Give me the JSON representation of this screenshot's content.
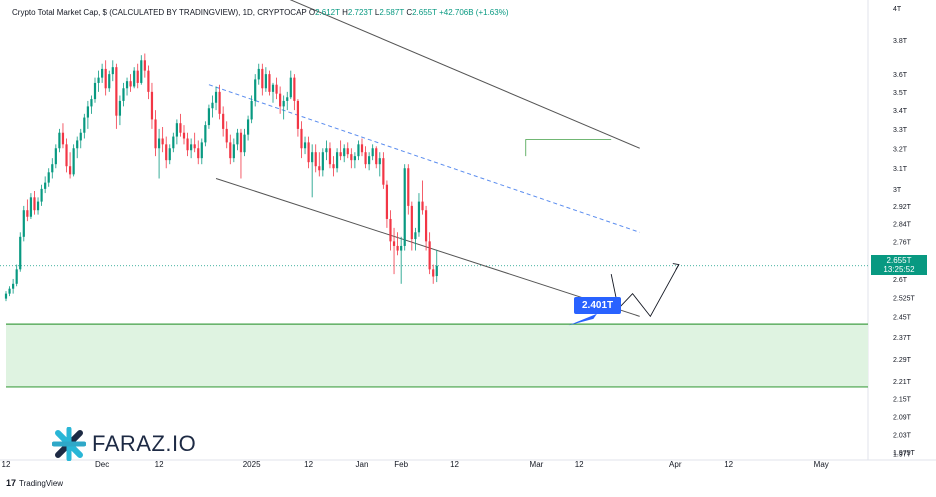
{
  "header": {
    "title": "Crypto Total Market Cap, $ (CALCULATED BY TRADINGVIEW), 1D, CRYPTOCAP",
    "open_label": "O",
    "open": "2.612T",
    "high_label": "H",
    "high": "2.723T",
    "low_label": "L",
    "low": "2.587T",
    "close_label": "C",
    "close": "2.655T",
    "change": "+42.706B (+1.63%)"
  },
  "badges": {
    "last_price": "2.655T",
    "countdown": "13:25:52",
    "low_marker": "2.401T"
  },
  "logo": {
    "brand": "FARAZ.IO"
  },
  "footer": {
    "brand": "TradingView"
  },
  "colors": {
    "up": "#089981",
    "down": "#f23645",
    "zone_fill": "#dff3e1",
    "zone_line": "#43a047",
    "channel": "#555555",
    "mid_dash": "#5b8def",
    "marker": "#2962ff"
  },
  "chart_data": {
    "type": "candlestick",
    "y_scale": "log",
    "ylim": [
      1.95,
      4.05
    ],
    "y_ticks": [
      {
        "v": 4.0,
        "label": "4T"
      },
      {
        "v": 3.8,
        "label": "3.8T"
      },
      {
        "v": 3.6,
        "label": "3.6T"
      },
      {
        "v": 3.5,
        "label": "3.5T"
      },
      {
        "v": 3.4,
        "label": "3.4T"
      },
      {
        "v": 3.3,
        "label": "3.3T"
      },
      {
        "v": 3.2,
        "label": "3.2T"
      },
      {
        "v": 3.1,
        "label": "3.1T"
      },
      {
        "v": 3.0,
        "label": "3T"
      },
      {
        "v": 2.92,
        "label": "2.92T"
      },
      {
        "v": 2.84,
        "label": "2.84T"
      },
      {
        "v": 2.76,
        "label": "2.76T"
      },
      {
        "v": 2.68,
        "label": "2.68T"
      },
      {
        "v": 2.6,
        "label": "2.6T"
      },
      {
        "v": 2.525,
        "label": "2.525T"
      },
      {
        "v": 2.45,
        "label": "2.45T"
      },
      {
        "v": 2.37,
        "label": "2.37T"
      },
      {
        "v": 2.29,
        "label": "2.29T"
      },
      {
        "v": 2.21,
        "label": "2.21T"
      },
      {
        "v": 2.15,
        "label": "2.15T"
      },
      {
        "v": 2.09,
        "label": "2.09T"
      },
      {
        "v": 2.03,
        "label": "2.03T"
      },
      {
        "v": 1.975,
        "label": "1.975T"
      },
      {
        "v": 1.97,
        "label": "1.97T"
      }
    ],
    "x_ticks": [
      {
        "i": 0,
        "label": "12"
      },
      {
        "i": 27,
        "label": "Dec"
      },
      {
        "i": 43,
        "label": "12"
      },
      {
        "i": 69,
        "label": "2025"
      },
      {
        "i": 85,
        "label": "12"
      },
      {
        "i": 100,
        "label": "Jan"
      },
      {
        "i": 111,
        "label": "Feb"
      },
      {
        "i": 126,
        "label": "12"
      },
      {
        "i": 149,
        "label": "Mar"
      },
      {
        "i": 161,
        "label": "12"
      },
      {
        "i": 188,
        "label": "Apr"
      },
      {
        "i": 203,
        "label": "12"
      },
      {
        "i": 229,
        "label": "May"
      }
    ],
    "candles": [
      [
        2.52,
        2.55,
        2.51,
        2.54
      ],
      [
        2.54,
        2.57,
        2.53,
        2.56
      ],
      [
        2.56,
        2.6,
        2.54,
        2.58
      ],
      [
        2.58,
        2.66,
        2.57,
        2.64
      ],
      [
        2.64,
        2.8,
        2.63,
        2.78
      ],
      [
        2.78,
        2.92,
        2.76,
        2.9
      ],
      [
        2.9,
        2.95,
        2.85,
        2.87
      ],
      [
        2.87,
        2.98,
        2.86,
        2.96
      ],
      [
        2.96,
        2.99,
        2.88,
        2.9
      ],
      [
        2.9,
        2.96,
        2.88,
        2.94
      ],
      [
        2.94,
        3.02,
        2.92,
        3.0
      ],
      [
        3.0,
        3.06,
        2.98,
        3.03
      ],
      [
        3.03,
        3.1,
        3.01,
        3.08
      ],
      [
        3.08,
        3.15,
        3.05,
        3.12
      ],
      [
        3.12,
        3.22,
        3.1,
        3.2
      ],
      [
        3.2,
        3.3,
        3.18,
        3.28
      ],
      [
        3.28,
        3.33,
        3.2,
        3.22
      ],
      [
        3.22,
        3.25,
        3.08,
        3.11
      ],
      [
        3.11,
        3.18,
        3.05,
        3.07
      ],
      [
        3.07,
        3.22,
        3.06,
        3.2
      ],
      [
        3.2,
        3.26,
        3.15,
        3.24
      ],
      [
        3.24,
        3.3,
        3.2,
        3.28
      ],
      [
        3.28,
        3.38,
        3.25,
        3.36
      ],
      [
        3.36,
        3.45,
        3.3,
        3.42
      ],
      [
        3.42,
        3.48,
        3.38,
        3.46
      ],
      [
        3.46,
        3.58,
        3.44,
        3.55
      ],
      [
        3.55,
        3.62,
        3.5,
        3.58
      ],
      [
        3.58,
        3.66,
        3.55,
        3.63
      ],
      [
        3.63,
        3.68,
        3.48,
        3.52
      ],
      [
        3.52,
        3.62,
        3.5,
        3.6
      ],
      [
        3.6,
        3.68,
        3.56,
        3.64
      ],
      [
        3.64,
        3.66,
        3.3,
        3.37
      ],
      [
        3.37,
        3.48,
        3.32,
        3.45
      ],
      [
        3.45,
        3.55,
        3.42,
        3.52
      ],
      [
        3.52,
        3.58,
        3.48,
        3.56
      ],
      [
        3.56,
        3.6,
        3.5,
        3.53
      ],
      [
        3.53,
        3.64,
        3.52,
        3.62
      ],
      [
        3.62,
        3.66,
        3.52,
        3.55
      ],
      [
        3.55,
        3.71,
        3.54,
        3.68
      ],
      [
        3.68,
        3.72,
        3.58,
        3.62
      ],
      [
        3.62,
        3.65,
        3.46,
        3.5
      ],
      [
        3.5,
        3.55,
        3.3,
        3.35
      ],
      [
        3.35,
        3.4,
        3.16,
        3.2
      ],
      [
        3.2,
        3.3,
        3.05,
        3.25
      ],
      [
        3.25,
        3.31,
        3.18,
        3.22
      ],
      [
        3.22,
        3.26,
        3.1,
        3.14
      ],
      [
        3.14,
        3.22,
        3.12,
        3.2
      ],
      [
        3.2,
        3.28,
        3.18,
        3.26
      ],
      [
        3.26,
        3.35,
        3.22,
        3.33
      ],
      [
        3.33,
        3.38,
        3.26,
        3.28
      ],
      [
        3.28,
        3.32,
        3.22,
        3.25
      ],
      [
        3.25,
        3.28,
        3.16,
        3.19
      ],
      [
        3.19,
        3.25,
        3.15,
        3.22
      ],
      [
        3.22,
        3.28,
        3.18,
        3.2
      ],
      [
        3.2,
        3.24,
        3.12,
        3.15
      ],
      [
        3.15,
        3.25,
        3.12,
        3.23
      ],
      [
        3.23,
        3.34,
        3.21,
        3.32
      ],
      [
        3.32,
        3.43,
        3.3,
        3.41
      ],
      [
        3.41,
        3.48,
        3.36,
        3.44
      ],
      [
        3.44,
        3.53,
        3.4,
        3.5
      ],
      [
        3.5,
        3.54,
        3.35,
        3.38
      ],
      [
        3.38,
        3.42,
        3.26,
        3.3
      ],
      [
        3.3,
        3.34,
        3.2,
        3.23
      ],
      [
        3.23,
        3.27,
        3.12,
        3.15
      ],
      [
        3.15,
        3.25,
        3.13,
        3.22
      ],
      [
        3.22,
        3.3,
        3.19,
        3.28
      ],
      [
        3.28,
        3.3,
        3.05,
        3.18
      ],
      [
        3.18,
        3.3,
        3.16,
        3.27
      ],
      [
        3.27,
        3.37,
        3.24,
        3.35
      ],
      [
        3.35,
        3.48,
        3.33,
        3.45
      ],
      [
        3.45,
        3.6,
        3.42,
        3.57
      ],
      [
        3.57,
        3.66,
        3.54,
        3.63
      ],
      [
        3.63,
        3.66,
        3.48,
        3.52
      ],
      [
        3.52,
        3.64,
        3.5,
        3.6
      ],
      [
        3.6,
        3.62,
        3.48,
        3.5
      ],
      [
        3.5,
        3.55,
        3.44,
        3.54
      ],
      [
        3.54,
        3.58,
        3.46,
        3.49
      ],
      [
        3.49,
        3.53,
        3.38,
        3.42
      ],
      [
        3.42,
        3.48,
        3.35,
        3.45
      ],
      [
        3.45,
        3.5,
        3.4,
        3.47
      ],
      [
        3.47,
        3.62,
        3.46,
        3.58
      ],
      [
        3.58,
        3.6,
        3.4,
        3.45
      ],
      [
        3.45,
        3.46,
        3.26,
        3.3
      ],
      [
        3.3,
        3.34,
        3.15,
        3.2
      ],
      [
        3.2,
        3.26,
        3.17,
        3.23
      ],
      [
        3.23,
        3.26,
        3.1,
        3.13
      ],
      [
        3.13,
        3.22,
        2.96,
        3.18
      ],
      [
        3.18,
        3.22,
        3.08,
        3.11
      ],
      [
        3.11,
        3.18,
        3.06,
        3.09
      ],
      [
        3.09,
        3.2,
        3.06,
        3.18
      ],
      [
        3.18,
        3.24,
        3.14,
        3.2
      ],
      [
        3.2,
        3.23,
        3.1,
        3.12
      ],
      [
        3.12,
        3.16,
        3.06,
        3.1
      ],
      [
        3.1,
        3.2,
        3.08,
        3.18
      ],
      [
        3.18,
        3.24,
        3.14,
        3.16
      ],
      [
        3.16,
        3.22,
        3.13,
        3.2
      ],
      [
        3.2,
        3.23,
        3.15,
        3.17
      ],
      [
        3.17,
        3.2,
        3.1,
        3.14
      ],
      [
        3.14,
        3.18,
        3.1,
        3.16
      ],
      [
        3.16,
        3.24,
        3.14,
        3.22
      ],
      [
        3.22,
        3.25,
        3.16,
        3.18
      ],
      [
        3.18,
        3.21,
        3.1,
        3.12
      ],
      [
        3.12,
        3.18,
        3.09,
        3.16
      ],
      [
        3.16,
        3.22,
        3.14,
        3.2
      ],
      [
        3.2,
        3.21,
        3.1,
        3.12
      ],
      [
        3.12,
        3.18,
        3.06,
        3.15
      ],
      [
        3.15,
        3.18,
        3.0,
        3.02
      ],
      [
        3.02,
        3.04,
        2.82,
        2.86
      ],
      [
        2.86,
        2.9,
        2.72,
        2.76
      ],
      [
        2.76,
        2.82,
        2.62,
        2.74
      ],
      [
        2.74,
        2.8,
        2.7,
        2.72
      ],
      [
        2.72,
        2.78,
        2.58,
        2.74
      ],
      [
        2.74,
        3.12,
        2.72,
        3.1
      ],
      [
        3.1,
        3.12,
        2.88,
        2.92
      ],
      [
        2.92,
        2.94,
        2.72,
        2.77
      ],
      [
        2.77,
        2.82,
        2.72,
        2.8
      ],
      [
        2.8,
        2.98,
        2.78,
        2.94
      ],
      [
        2.94,
        3.04,
        2.88,
        2.9
      ],
      [
        2.9,
        2.92,
        2.72,
        2.76
      ],
      [
        2.76,
        2.8,
        2.62,
        2.64
      ],
      [
        2.64,
        2.66,
        2.58,
        2.61
      ],
      [
        2.612,
        2.723,
        2.587,
        2.655
      ]
    ],
    "annotations": [
      {
        "name": "descending-channel",
        "type": "channel"
      },
      {
        "name": "support-zone",
        "type": "zone",
        "from": 2.19,
        "to": 2.42
      },
      {
        "name": "projection-path",
        "type": "polyline"
      }
    ]
  }
}
